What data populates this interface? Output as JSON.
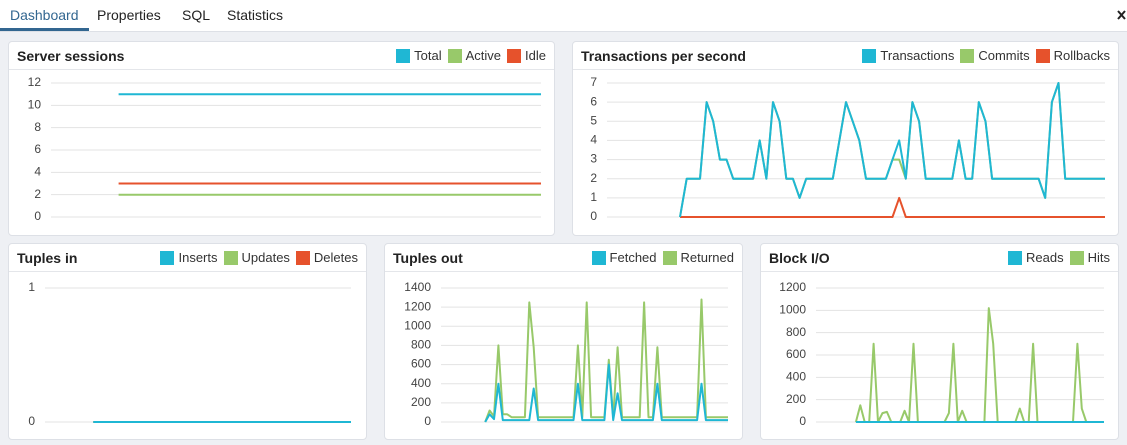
{
  "tabs": [
    "Dashboard",
    "Properties",
    "SQL",
    "Statistics"
  ],
  "chart_data": [
    {
      "type": "line",
      "title": "Server sessions",
      "ylim": [
        0,
        12
      ],
      "yticks": [
        0,
        2,
        4,
        6,
        8,
        10,
        12
      ],
      "grid": true,
      "legend": "top-right",
      "series": [
        {
          "name": "Total",
          "color": "#1fb7d4",
          "values": [
            null,
            null,
            null,
            null,
            11,
            11,
            11,
            11,
            11,
            11,
            11,
            11,
            11,
            11,
            11,
            11,
            11,
            11,
            11,
            11,
            11,
            11,
            11,
            11,
            11,
            11,
            11,
            11,
            11,
            11
          ]
        },
        {
          "name": "Active",
          "color": "#98c96a",
          "values": [
            null,
            null,
            null,
            null,
            2,
            2,
            2,
            2,
            2,
            2,
            2,
            2,
            2,
            2,
            2,
            2,
            2,
            2,
            2,
            2,
            2,
            2,
            2,
            2,
            2,
            2,
            2,
            2,
            2,
            2
          ]
        },
        {
          "name": "Idle",
          "color": "#e6522c",
          "values": [
            null,
            null,
            null,
            null,
            3,
            3,
            3,
            3,
            3,
            3,
            3,
            3,
            3,
            3,
            3,
            3,
            3,
            3,
            3,
            3,
            3,
            3,
            3,
            3,
            3,
            3,
            3,
            3,
            3,
            3
          ]
        }
      ]
    },
    {
      "type": "line",
      "title": "Transactions per second",
      "ylim": [
        0,
        7
      ],
      "yticks": [
        0,
        1,
        2,
        3,
        4,
        5,
        6,
        7
      ],
      "grid": true,
      "legend": "top-right",
      "series": [
        {
          "name": "Transactions",
          "color": "#1fb7d4",
          "values": [
            null,
            null,
            null,
            null,
            null,
            null,
            null,
            null,
            null,
            null,
            null,
            0,
            2,
            2,
            2,
            6,
            5,
            3,
            3,
            2,
            2,
            2,
            2,
            4,
            2,
            6,
            5,
            2,
            2,
            1,
            2,
            2,
            2,
            2,
            2,
            4,
            6,
            5,
            4,
            2,
            2,
            2,
            2,
            3,
            4,
            2,
            6,
            5,
            2,
            2,
            2,
            2,
            2,
            4,
            2,
            2,
            6,
            5,
            2,
            2,
            2,
            2,
            2,
            2,
            2,
            2,
            1,
            6,
            7,
            2,
            2,
            2,
            2,
            2,
            2,
            2
          ]
        },
        {
          "name": "Commits",
          "color": "#98c96a",
          "values": [
            null,
            null,
            null,
            null,
            null,
            null,
            null,
            null,
            null,
            null,
            null,
            0,
            2,
            2,
            2,
            6,
            5,
            3,
            3,
            2,
            2,
            2,
            2,
            4,
            2,
            6,
            5,
            2,
            2,
            1,
            2,
            2,
            2,
            2,
            2,
            4,
            6,
            5,
            4,
            2,
            2,
            2,
            2,
            3,
            3,
            2,
            6,
            5,
            2,
            2,
            2,
            2,
            2,
            4,
            2,
            2,
            6,
            5,
            2,
            2,
            2,
            2,
            2,
            2,
            2,
            2,
            1,
            6,
            7,
            2,
            2,
            2,
            2,
            2,
            2,
            2
          ]
        },
        {
          "name": "Rollbacks",
          "color": "#e6522c",
          "values": [
            null,
            null,
            null,
            null,
            null,
            null,
            null,
            null,
            null,
            null,
            null,
            0,
            0,
            0,
            0,
            0,
            0,
            0,
            0,
            0,
            0,
            0,
            0,
            0,
            0,
            0,
            0,
            0,
            0,
            0,
            0,
            0,
            0,
            0,
            0,
            0,
            0,
            0,
            0,
            0,
            0,
            0,
            0,
            0,
            1,
            0,
            0,
            0,
            0,
            0,
            0,
            0,
            0,
            0,
            0,
            0,
            0,
            0,
            0,
            0,
            0,
            0,
            0,
            0,
            0,
            0,
            0,
            0,
            0,
            0,
            0,
            0,
            0,
            0,
            0,
            0
          ]
        }
      ]
    },
    {
      "type": "line",
      "title": "Tuples in",
      "ylim": [
        0,
        1
      ],
      "yticks": [
        0,
        1
      ],
      "grid": true,
      "legend": "top-right",
      "series": [
        {
          "name": "Inserts",
          "color": "#1fb7d4",
          "values": [
            null,
            null,
            null,
            0,
            0,
            0,
            0,
            0,
            0,
            0,
            0,
            0,
            0,
            0,
            0,
            0,
            0,
            0,
            0,
            0
          ]
        },
        {
          "name": "Updates",
          "color": "#98c96a",
          "values": [
            null,
            null,
            null,
            0,
            0,
            0,
            0,
            0,
            0,
            0,
            0,
            0,
            0,
            0,
            0,
            0,
            0,
            0,
            0,
            0
          ]
        },
        {
          "name": "Deletes",
          "color": "#e6522c",
          "values": [
            null,
            null,
            null,
            0,
            0,
            0,
            0,
            0,
            0,
            0,
            0,
            0,
            0,
            0,
            0,
            0,
            0,
            0,
            0,
            0
          ]
        }
      ]
    },
    {
      "type": "line",
      "title": "Tuples out",
      "ylim": [
        0,
        1400
      ],
      "yticks": [
        0,
        200,
        400,
        600,
        800,
        1000,
        1200,
        1400
      ],
      "grid": true,
      "legend": "top-right",
      "series": [
        {
          "name": "Fetched",
          "color": "#1fb7d4",
          "values": [
            null,
            null,
            null,
            null,
            null,
            null,
            null,
            null,
            null,
            null,
            0,
            80,
            30,
            400,
            20,
            20,
            20,
            20,
            20,
            20,
            20,
            350,
            20,
            20,
            20,
            20,
            20,
            20,
            20,
            20,
            20,
            400,
            20,
            20,
            20,
            20,
            20,
            20,
            600,
            20,
            300,
            20,
            20,
            20,
            20,
            20,
            20,
            20,
            20,
            400,
            20,
            20,
            20,
            20,
            20,
            20,
            20,
            20,
            20,
            400,
            20,
            20,
            20,
            20,
            20,
            20
          ]
        },
        {
          "name": "Returned",
          "color": "#98c96a",
          "values": [
            null,
            null,
            null,
            null,
            null,
            null,
            null,
            null,
            null,
            null,
            0,
            120,
            60,
            800,
            80,
            80,
            50,
            50,
            50,
            50,
            1250,
            780,
            50,
            50,
            50,
            50,
            50,
            50,
            50,
            50,
            50,
            800,
            50,
            1250,
            50,
            50,
            50,
            50,
            650,
            50,
            780,
            50,
            50,
            50,
            50,
            50,
            1250,
            50,
            50,
            780,
            50,
            50,
            50,
            50,
            50,
            50,
            50,
            50,
            50,
            1280,
            50,
            50,
            50,
            50,
            50,
            50
          ]
        }
      ]
    },
    {
      "type": "line",
      "title": "Block I/O",
      "ylim": [
        0,
        1200
      ],
      "yticks": [
        0,
        200,
        400,
        600,
        800,
        1000,
        1200
      ],
      "grid": true,
      "legend": "top-right",
      "series": [
        {
          "name": "Reads",
          "color": "#1fb7d4",
          "values": [
            null,
            null,
            null,
            null,
            null,
            null,
            null,
            null,
            null,
            0,
            0,
            0,
            0,
            0,
            0,
            0,
            0,
            0,
            0,
            0,
            0,
            0,
            0,
            0,
            0,
            0,
            0,
            0,
            0,
            0,
            0,
            0,
            0,
            0,
            0,
            0,
            0,
            0,
            0,
            0,
            0,
            0,
            0,
            0,
            0,
            0,
            0,
            0,
            0,
            0,
            0,
            0,
            0,
            0,
            0,
            0,
            0,
            0,
            0,
            0,
            0,
            0,
            0,
            0,
            0,
            0
          ]
        },
        {
          "name": "Hits",
          "color": "#98c96a",
          "values": [
            null,
            null,
            null,
            null,
            null,
            null,
            null,
            null,
            null,
            0,
            150,
            0,
            0,
            700,
            0,
            80,
            90,
            0,
            0,
            0,
            100,
            0,
            700,
            0,
            0,
            0,
            0,
            0,
            0,
            0,
            80,
            700,
            0,
            100,
            0,
            0,
            0,
            0,
            0,
            1020,
            700,
            0,
            0,
            0,
            0,
            0,
            120,
            0,
            0,
            700,
            0,
            0,
            0,
            0,
            0,
            0,
            0,
            0,
            0,
            700,
            120,
            0,
            0,
            0,
            0,
            0
          ]
        }
      ]
    }
  ]
}
